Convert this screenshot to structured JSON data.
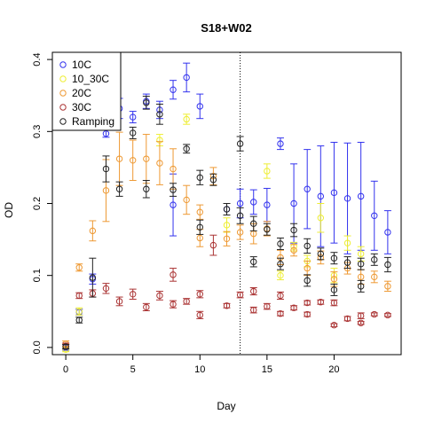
{
  "chart_data": {
    "type": "scatter",
    "title": "S18+W02",
    "xlabel": "Day",
    "ylabel": "OD",
    "xlim": [
      -1,
      25
    ],
    "ylim": [
      -0.01,
      0.41
    ],
    "x_ticks": [
      0,
      5,
      10,
      15,
      20
    ],
    "y_ticks": [
      0.0,
      0.1,
      0.2,
      0.3,
      0.4
    ],
    "grid": false,
    "legend_position": "top-left",
    "reference_line": {
      "x": 13,
      "style": "dotted"
    },
    "series": [
      {
        "name": "10C",
        "color": "#3333ee",
        "points": [
          {
            "x": 0,
            "y": 0.0,
            "lo": -0.004,
            "hi": 0.004
          },
          {
            "x": 1,
            "y": 0.049,
            "lo": 0.045,
            "hi": 0.053
          },
          {
            "x": 2,
            "y": 0.095,
            "lo": 0.088,
            "hi": 0.102
          },
          {
            "x": 3,
            "y": 0.297,
            "lo": 0.292,
            "hi": 0.302
          },
          {
            "x": 4,
            "y": 0.332,
            "lo": 0.318,
            "hi": 0.346
          },
          {
            "x": 5,
            "y": 0.32,
            "lo": 0.312,
            "hi": 0.328
          },
          {
            "x": 6,
            "y": 0.342,
            "lo": 0.332,
            "hi": 0.352
          },
          {
            "x": 7,
            "y": 0.33,
            "lo": 0.318,
            "hi": 0.342
          },
          {
            "x": 8,
            "y": 0.358,
            "lo": 0.345,
            "hi": 0.371
          },
          {
            "x": 9,
            "y": 0.375,
            "lo": 0.355,
            "hi": 0.395
          },
          {
            "x": 10,
            "y": 0.335,
            "lo": 0.318,
            "hi": 0.352
          },
          {
            "x": 8,
            "y": 0.198,
            "lo": 0.155,
            "hi": 0.241
          },
          {
            "x": 12,
            "y": 0.192,
            "lo": 0.184,
            "hi": 0.2
          },
          {
            "x": 13,
            "y": 0.2,
            "lo": 0.18,
            "hi": 0.22
          },
          {
            "x": 14,
            "y": 0.202,
            "lo": 0.185,
            "hi": 0.219
          },
          {
            "x": 15,
            "y": 0.198,
            "lo": 0.175,
            "hi": 0.221
          },
          {
            "x": 16,
            "y": 0.283,
            "lo": 0.275,
            "hi": 0.291
          },
          {
            "x": 17,
            "y": 0.2,
            "lo": 0.145,
            "hi": 0.255
          },
          {
            "x": 18,
            "y": 0.22,
            "lo": 0.165,
            "hi": 0.275
          },
          {
            "x": 19,
            "y": 0.21,
            "lo": 0.14,
            "hi": 0.28
          },
          {
            "x": 20,
            "y": 0.215,
            "lo": 0.145,
            "hi": 0.285
          },
          {
            "x": 21,
            "y": 0.207,
            "lo": 0.13,
            "hi": 0.284
          },
          {
            "x": 22,
            "y": 0.21,
            "lo": 0.135,
            "hi": 0.285
          },
          {
            "x": 23,
            "y": 0.183,
            "lo": 0.135,
            "hi": 0.231
          },
          {
            "x": 24,
            "y": 0.16,
            "lo": 0.13,
            "hi": 0.19
          }
        ]
      },
      {
        "name": "10_30C",
        "color": "#eeee33",
        "points": [
          {
            "x": 0,
            "y": -0.003,
            "lo": -0.006,
            "hi": 0.0
          },
          {
            "x": 1,
            "y": 0.05,
            "lo": 0.045,
            "hi": 0.055
          },
          {
            "x": 7,
            "y": 0.288,
            "lo": 0.28,
            "hi": 0.296
          },
          {
            "x": 9,
            "y": 0.317,
            "lo": 0.31,
            "hi": 0.324
          },
          {
            "x": 12,
            "y": 0.17,
            "lo": 0.16,
            "hi": 0.18
          },
          {
            "x": 15,
            "y": 0.245,
            "lo": 0.235,
            "hi": 0.255
          },
          {
            "x": 16,
            "y": 0.1,
            "lo": 0.094,
            "hi": 0.106
          },
          {
            "x": 17,
            "y": 0.14,
            "lo": 0.134,
            "hi": 0.146
          },
          {
            "x": 18,
            "y": 0.12,
            "lo": 0.112,
            "hi": 0.128
          },
          {
            "x": 19,
            "y": 0.18,
            "lo": 0.16,
            "hi": 0.2
          },
          {
            "x": 20,
            "y": 0.1,
            "lo": 0.09,
            "hi": 0.11
          },
          {
            "x": 21,
            "y": 0.145,
            "lo": 0.135,
            "hi": 0.155
          },
          {
            "x": 22,
            "y": 0.13,
            "lo": 0.12,
            "hi": 0.14
          }
        ]
      },
      {
        "name": "20C",
        "color": "#ee9933",
        "points": [
          {
            "x": 0,
            "y": 0.005,
            "lo": 0.001,
            "hi": 0.009
          },
          {
            "x": 1,
            "y": 0.111,
            "lo": 0.106,
            "hi": 0.116
          },
          {
            "x": 2,
            "y": 0.162,
            "lo": 0.148,
            "hi": 0.176
          },
          {
            "x": 3,
            "y": 0.218,
            "lo": 0.175,
            "hi": 0.261
          },
          {
            "x": 4,
            "y": 0.262,
            "lo": 0.225,
            "hi": 0.299
          },
          {
            "x": 5,
            "y": 0.26,
            "lo": 0.232,
            "hi": 0.288
          },
          {
            "x": 6,
            "y": 0.262,
            "lo": 0.228,
            "hi": 0.296
          },
          {
            "x": 7,
            "y": 0.256,
            "lo": 0.226,
            "hi": 0.286
          },
          {
            "x": 8,
            "y": 0.248,
            "lo": 0.22,
            "hi": 0.276
          },
          {
            "x": 9,
            "y": 0.205,
            "lo": 0.185,
            "hi": 0.225
          },
          {
            "x": 10,
            "y": 0.152,
            "lo": 0.14,
            "hi": 0.164
          },
          {
            "x": 10,
            "y": 0.188,
            "lo": 0.178,
            "hi": 0.198
          },
          {
            "x": 11,
            "y": 0.238,
            "lo": 0.226,
            "hi": 0.25
          },
          {
            "x": 12,
            "y": 0.151,
            "lo": 0.141,
            "hi": 0.161
          },
          {
            "x": 13,
            "y": 0.16,
            "lo": 0.15,
            "hi": 0.17
          },
          {
            "x": 14,
            "y": 0.158,
            "lo": 0.144,
            "hi": 0.172
          },
          {
            "x": 15,
            "y": 0.165,
            "lo": 0.155,
            "hi": 0.175
          },
          {
            "x": 16,
            "y": 0.125,
            "lo": 0.115,
            "hi": 0.135
          },
          {
            "x": 17,
            "y": 0.135,
            "lo": 0.127,
            "hi": 0.143
          },
          {
            "x": 18,
            "y": 0.11,
            "lo": 0.1,
            "hi": 0.12
          },
          {
            "x": 19,
            "y": 0.125,
            "lo": 0.116,
            "hi": 0.134
          },
          {
            "x": 20,
            "y": 0.095,
            "lo": 0.085,
            "hi": 0.105
          },
          {
            "x": 21,
            "y": 0.11,
            "lo": 0.102,
            "hi": 0.118
          },
          {
            "x": 22,
            "y": 0.098,
            "lo": 0.088,
            "hi": 0.108
          },
          {
            "x": 23,
            "y": 0.098,
            "lo": 0.09,
            "hi": 0.106
          },
          {
            "x": 24,
            "y": 0.085,
            "lo": 0.078,
            "hi": 0.092
          }
        ]
      },
      {
        "name": "30C",
        "color": "#aa3333",
        "points": [
          {
            "x": 0,
            "y": 0.002,
            "lo": -0.002,
            "hi": 0.006
          },
          {
            "x": 1,
            "y": 0.072,
            "lo": 0.068,
            "hi": 0.076
          },
          {
            "x": 2,
            "y": 0.075,
            "lo": 0.07,
            "hi": 0.08
          },
          {
            "x": 3,
            "y": 0.082,
            "lo": 0.075,
            "hi": 0.089
          },
          {
            "x": 4,
            "y": 0.064,
            "lo": 0.058,
            "hi": 0.07
          },
          {
            "x": 5,
            "y": 0.074,
            "lo": 0.067,
            "hi": 0.081
          },
          {
            "x": 6,
            "y": 0.056,
            "lo": 0.051,
            "hi": 0.061
          },
          {
            "x": 7,
            "y": 0.072,
            "lo": 0.066,
            "hi": 0.078
          },
          {
            "x": 8,
            "y": 0.101,
            "lo": 0.092,
            "hi": 0.11
          },
          {
            "x": 8,
            "y": 0.06,
            "lo": 0.055,
            "hi": 0.065
          },
          {
            "x": 9,
            "y": 0.064,
            "lo": 0.06,
            "hi": 0.068
          },
          {
            "x": 10,
            "y": 0.074,
            "lo": 0.069,
            "hi": 0.079
          },
          {
            "x": 10,
            "y": 0.045,
            "lo": 0.04,
            "hi": 0.05
          },
          {
            "x": 11,
            "y": 0.142,
            "lo": 0.128,
            "hi": 0.156
          },
          {
            "x": 12,
            "y": 0.058,
            "lo": 0.055,
            "hi": 0.061
          },
          {
            "x": 13,
            "y": 0.073,
            "lo": 0.069,
            "hi": 0.077
          },
          {
            "x": 14,
            "y": 0.078,
            "lo": 0.073,
            "hi": 0.083
          },
          {
            "x": 14,
            "y": 0.052,
            "lo": 0.048,
            "hi": 0.056
          },
          {
            "x": 15,
            "y": 0.057,
            "lo": 0.053,
            "hi": 0.061
          },
          {
            "x": 16,
            "y": 0.072,
            "lo": 0.067,
            "hi": 0.077
          },
          {
            "x": 16,
            "y": 0.047,
            "lo": 0.044,
            "hi": 0.05
          },
          {
            "x": 17,
            "y": 0.055,
            "lo": 0.052,
            "hi": 0.058
          },
          {
            "x": 18,
            "y": 0.046,
            "lo": 0.043,
            "hi": 0.049
          },
          {
            "x": 18,
            "y": 0.062,
            "lo": 0.059,
            "hi": 0.065
          },
          {
            "x": 19,
            "y": 0.063,
            "lo": 0.06,
            "hi": 0.066
          },
          {
            "x": 20,
            "y": 0.062,
            "lo": 0.058,
            "hi": 0.066
          },
          {
            "x": 20,
            "y": 0.031,
            "lo": 0.029,
            "hi": 0.033
          },
          {
            "x": 21,
            "y": 0.04,
            "lo": 0.037,
            "hi": 0.043
          },
          {
            "x": 22,
            "y": 0.044,
            "lo": 0.04,
            "hi": 0.048
          },
          {
            "x": 22,
            "y": 0.034,
            "lo": 0.032,
            "hi": 0.036
          },
          {
            "x": 23,
            "y": 0.046,
            "lo": 0.044,
            "hi": 0.048
          },
          {
            "x": 24,
            "y": 0.045,
            "lo": 0.043,
            "hi": 0.047
          }
        ]
      },
      {
        "name": "Ramping",
        "color": "#222222",
        "points": [
          {
            "x": 0,
            "y": 0.001,
            "lo": -0.002,
            "hi": 0.004
          },
          {
            "x": 1,
            "y": 0.038,
            "lo": 0.034,
            "hi": 0.042
          },
          {
            "x": 2,
            "y": 0.097,
            "lo": 0.07,
            "hi": 0.124
          },
          {
            "x": 3,
            "y": 0.248,
            "lo": 0.23,
            "hi": 0.266
          },
          {
            "x": 4,
            "y": 0.22,
            "lo": 0.21,
            "hi": 0.23
          },
          {
            "x": 5,
            "y": 0.298,
            "lo": 0.29,
            "hi": 0.306
          },
          {
            "x": 6,
            "y": 0.22,
            "lo": 0.208,
            "hi": 0.232
          },
          {
            "x": 6,
            "y": 0.34,
            "lo": 0.331,
            "hi": 0.349
          },
          {
            "x": 7,
            "y": 0.324,
            "lo": 0.31,
            "hi": 0.338
          },
          {
            "x": 8,
            "y": 0.219,
            "lo": 0.21,
            "hi": 0.228
          },
          {
            "x": 9,
            "y": 0.276,
            "lo": 0.27,
            "hi": 0.282
          },
          {
            "x": 10,
            "y": 0.167,
            "lo": 0.157,
            "hi": 0.177
          },
          {
            "x": 10,
            "y": 0.236,
            "lo": 0.226,
            "hi": 0.246
          },
          {
            "x": 11,
            "y": 0.233,
            "lo": 0.225,
            "hi": 0.241
          },
          {
            "x": 12,
            "y": 0.192,
            "lo": 0.184,
            "hi": 0.2
          },
          {
            "x": 13,
            "y": 0.283,
            "lo": 0.273,
            "hi": 0.293
          },
          {
            "x": 13,
            "y": 0.183,
            "lo": 0.172,
            "hi": 0.194
          },
          {
            "x": 14,
            "y": 0.172,
            "lo": 0.162,
            "hi": 0.182
          },
          {
            "x": 14,
            "y": 0.119,
            "lo": 0.112,
            "hi": 0.126
          },
          {
            "x": 15,
            "y": 0.164,
            "lo": 0.156,
            "hi": 0.172
          },
          {
            "x": 16,
            "y": 0.116,
            "lo": 0.108,
            "hi": 0.124
          },
          {
            "x": 16,
            "y": 0.144,
            "lo": 0.136,
            "hi": 0.152
          },
          {
            "x": 17,
            "y": 0.163,
            "lo": 0.154,
            "hi": 0.172
          },
          {
            "x": 18,
            "y": 0.141,
            "lo": 0.131,
            "hi": 0.151
          },
          {
            "x": 18,
            "y": 0.093,
            "lo": 0.085,
            "hi": 0.101
          },
          {
            "x": 19,
            "y": 0.13,
            "lo": 0.122,
            "hi": 0.138
          },
          {
            "x": 20,
            "y": 0.124,
            "lo": 0.116,
            "hi": 0.132
          },
          {
            "x": 20,
            "y": 0.08,
            "lo": 0.072,
            "hi": 0.088
          },
          {
            "x": 21,
            "y": 0.118,
            "lo": 0.11,
            "hi": 0.126
          },
          {
            "x": 22,
            "y": 0.116,
            "lo": 0.108,
            "hi": 0.124
          },
          {
            "x": 22,
            "y": 0.085,
            "lo": 0.077,
            "hi": 0.093
          },
          {
            "x": 23,
            "y": 0.122,
            "lo": 0.114,
            "hi": 0.13
          },
          {
            "x": 24,
            "y": 0.115,
            "lo": 0.105,
            "hi": 0.125
          }
        ]
      }
    ]
  }
}
